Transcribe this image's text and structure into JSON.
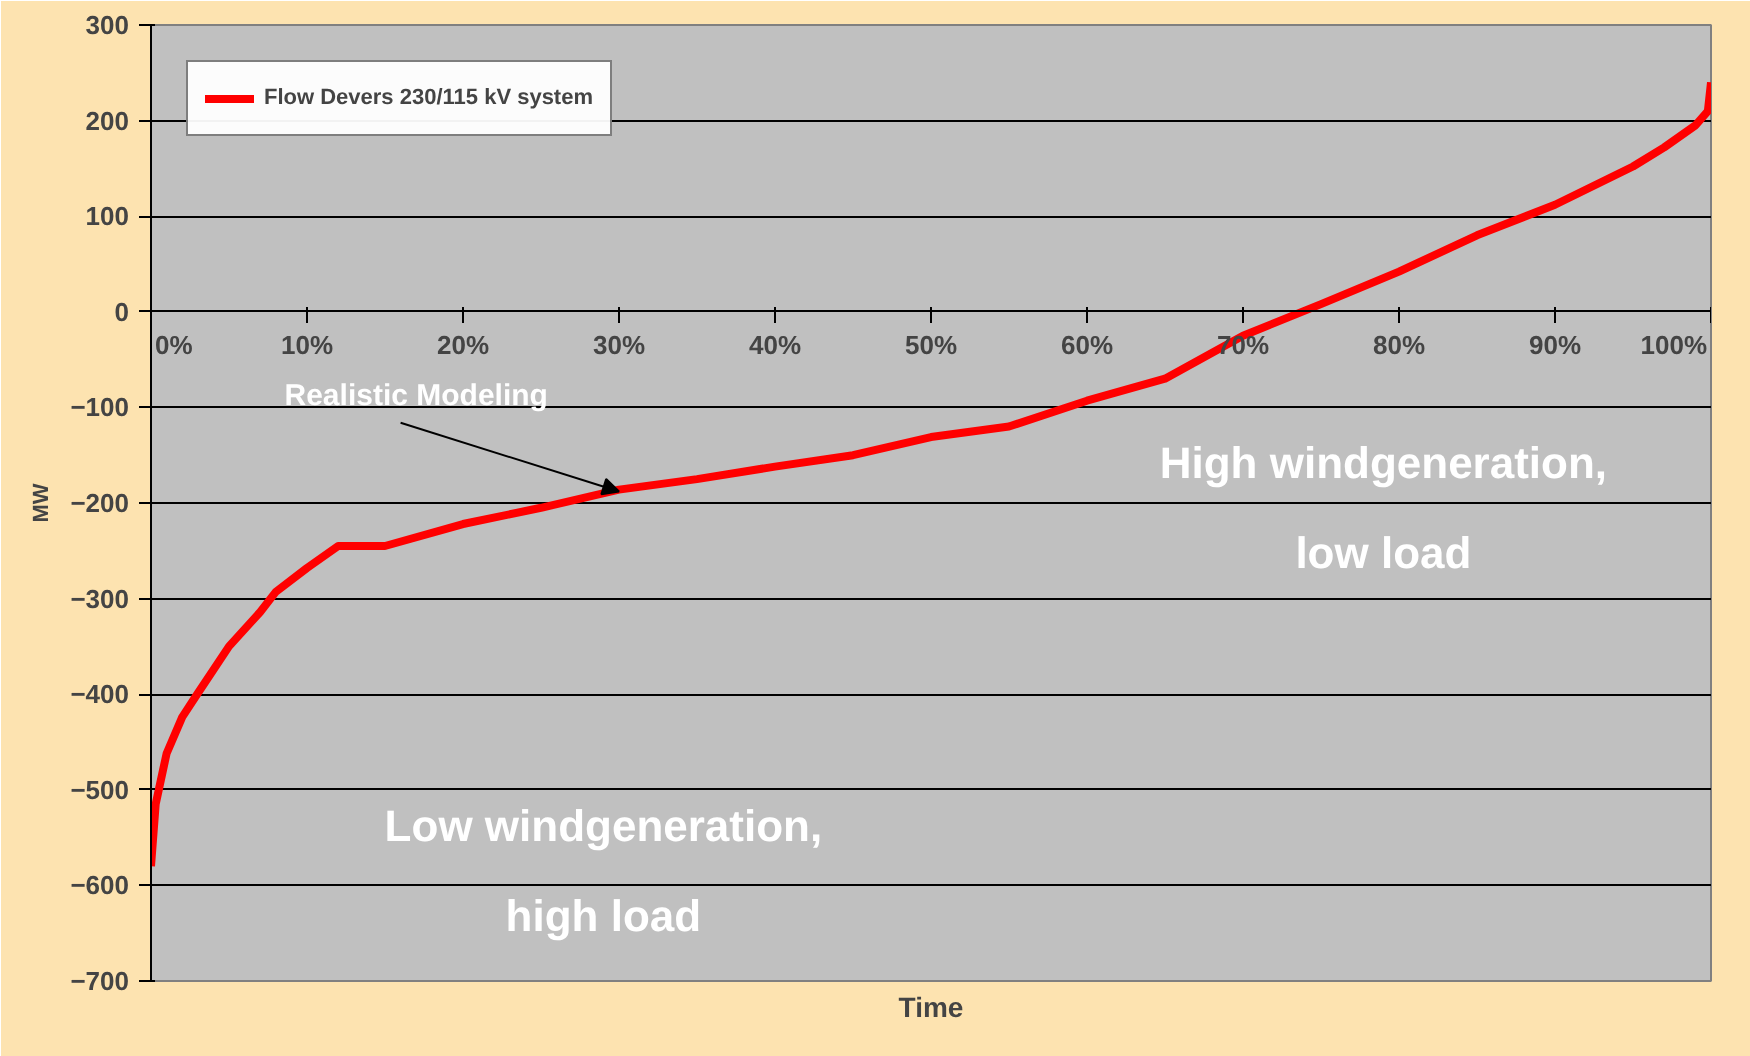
{
  "chart_data": {
    "type": "line",
    "xlabel": "Time",
    "ylabel": "MW",
    "x": [
      0,
      0.3,
      1,
      2,
      3,
      5,
      7,
      8,
      10,
      12,
      15,
      20,
      25,
      30,
      35,
      40,
      45,
      50,
      55,
      60,
      65,
      70,
      75,
      80,
      85,
      90,
      95,
      97,
      99,
      99.8,
      100
    ],
    "series": [
      {
        "name": "Flow Devers 230/115 kV system",
        "color": "#ff0000",
        "values": [
          -580,
          -515,
          -462,
          -424,
          -399,
          -350,
          -314,
          -293,
          -268,
          -245,
          -245,
          -222,
          -205,
          -186,
          -175,
          -162,
          -150,
          -131,
          -120,
          -93,
          -70,
          -25,
          8,
          42,
          80,
          112,
          152,
          172,
          195,
          210,
          240
        ]
      }
    ],
    "xlim": [
      0,
      100
    ],
    "ylim": [
      -700,
      300
    ],
    "xticks": [
      {
        "value": 0,
        "label": "0%"
      },
      {
        "value": 10,
        "label": "10%"
      },
      {
        "value": 20,
        "label": "20%"
      },
      {
        "value": 30,
        "label": "30%"
      },
      {
        "value": 40,
        "label": "40%"
      },
      {
        "value": 50,
        "label": "50%"
      },
      {
        "value": 60,
        "label": "60%"
      },
      {
        "value": 70,
        "label": "70%"
      },
      {
        "value": 80,
        "label": "80%"
      },
      {
        "value": 90,
        "label": "90%"
      },
      {
        "value": 100,
        "label": "100%"
      }
    ],
    "yticks": [
      -700,
      -600,
      -500,
      -400,
      -300,
      -200,
      -100,
      0,
      100,
      200,
      300
    ],
    "annotations": [
      {
        "text": "Realistic Modeling",
        "x": 30,
        "y": -188
      },
      "High windgeneration, low load",
      "Low windgeneration, high load"
    ],
    "grid": "y",
    "legend": "top left",
    "marker": "none",
    "line_style": "solid"
  }
}
